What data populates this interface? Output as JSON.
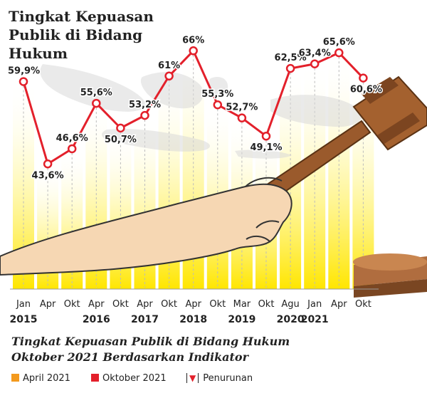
{
  "chart_data": {
    "type": "line",
    "title_lines": [
      "Tingkat Kepuasan",
      "Publik di Bidang",
      "Hukum"
    ],
    "categories": [
      "Jan",
      "Apr",
      "Okt",
      "Apr",
      "Okt",
      "Apr",
      "Okt",
      "Apr",
      "Okt",
      "Mar",
      "Okt",
      "Agu",
      "Jan",
      "Apr",
      "Okt"
    ],
    "years": [
      {
        "label": "2015",
        "index": 0
      },
      {
        "label": "2016",
        "index": 3
      },
      {
        "label": "2017",
        "index": 5
      },
      {
        "label": "2018",
        "index": 7
      },
      {
        "label": "2019",
        "index": 9
      },
      {
        "label": "2020",
        "index": 11
      },
      {
        "label": "2021",
        "index": 12
      }
    ],
    "values": [
      59.9,
      43.6,
      46.6,
      55.6,
      50.7,
      53.2,
      61,
      66,
      55.3,
      52.7,
      49.1,
      62.5,
      63.4,
      65.6,
      60.6
    ],
    "data_labels": [
      "59,9%",
      "43,6%",
      "46,6%",
      "55,6%",
      "50,7%",
      "53,2%",
      "61%",
      "66%",
      "55,3%",
      "52,7%",
      "49,1%",
      "62,5%",
      "63,4%",
      "65,6%",
      "60,6%"
    ],
    "line_color": "#e3202b",
    "column_color": "#ffe600",
    "ylim": [
      38,
      69
    ]
  },
  "subtitle_lines": [
    "Tingkat Kepuasan Publik di Bidang Hukum",
    "Oktober 2021 Berdasarkan Indikator"
  ],
  "legend": [
    {
      "label": "April 2021",
      "color": "#f39a1e"
    },
    {
      "label": "Oktober 2021",
      "color": "#e3202b"
    },
    {
      "label": "Penurunan",
      "icon": "down-triangle-icon",
      "color": "#e3202b"
    }
  ]
}
